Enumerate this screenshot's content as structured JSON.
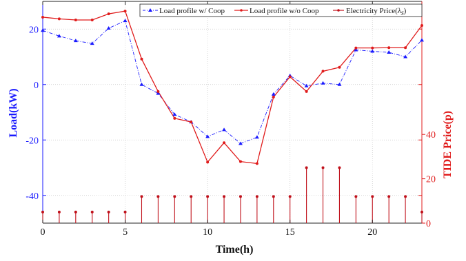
{
  "chart_data": {
    "type": "line",
    "xlabel": "Time(h)",
    "ylabel_left": "Load(kW)",
    "ylabel_right": "TIDE Price(p)",
    "xlim": [
      0,
      23
    ],
    "ylim_left": [
      -50,
      30
    ],
    "ylim_right": [
      0,
      100
    ],
    "x_ticks": [
      0,
      5,
      10,
      15,
      20
    ],
    "y_left_ticks": [
      -40,
      -20,
      0,
      20
    ],
    "y_right_ticks": [
      0,
      20,
      40
    ],
    "grid": true,
    "legend_position": "top",
    "x": [
      0,
      1,
      2,
      3,
      4,
      5,
      6,
      7,
      8,
      9,
      10,
      11,
      12,
      13,
      14,
      15,
      16,
      17,
      18,
      19,
      20,
      21,
      22,
      23
    ],
    "series": [
      {
        "name": "Load profile w/ Coop",
        "axis": "left",
        "color": "#1a1aff",
        "style": "dash-dot",
        "marker": "triangle",
        "values": [
          19.5,
          17.5,
          15.8,
          14.8,
          20.3,
          23.0,
          0.0,
          -3.2,
          -10.8,
          -13.5,
          -18.8,
          -16.3,
          -21.3,
          -19.0,
          -3.5,
          3.2,
          -0.5,
          0.5,
          0.0,
          12.5,
          12.0,
          11.6,
          10.0,
          16.0
        ]
      },
      {
        "name": "Load profile w/o Coop",
        "axis": "left",
        "color": "#e01b1b",
        "style": "solid",
        "marker": "dot",
        "values": [
          24.3,
          23.7,
          23.3,
          23.3,
          25.5,
          26.5,
          9.2,
          -2.5,
          -12.2,
          -13.5,
          -28.0,
          -21.0,
          -27.8,
          -28.5,
          -4.5,
          2.8,
          -2.5,
          4.8,
          6.2,
          13.2,
          13.2,
          13.3,
          13.3,
          21.3
        ]
      },
      {
        "name": "Electricity Price(λ_S)",
        "axis": "right",
        "color": "#c0101a",
        "style": "stem",
        "marker": "dot",
        "values": [
          5,
          5,
          5,
          5,
          5,
          5,
          12,
          12,
          12,
          12,
          12,
          12,
          12,
          12,
          12,
          12,
          25,
          25,
          25,
          12,
          12,
          12,
          12,
          5
        ]
      }
    ],
    "legend": [
      {
        "label": "Load profile w/ Coop"
      },
      {
        "label": "Load profile w/o Coop"
      },
      {
        "label_main": "Electricity Price(",
        "label_sym": "λ",
        "label_sub": "S",
        "label_end": ")"
      }
    ]
  }
}
